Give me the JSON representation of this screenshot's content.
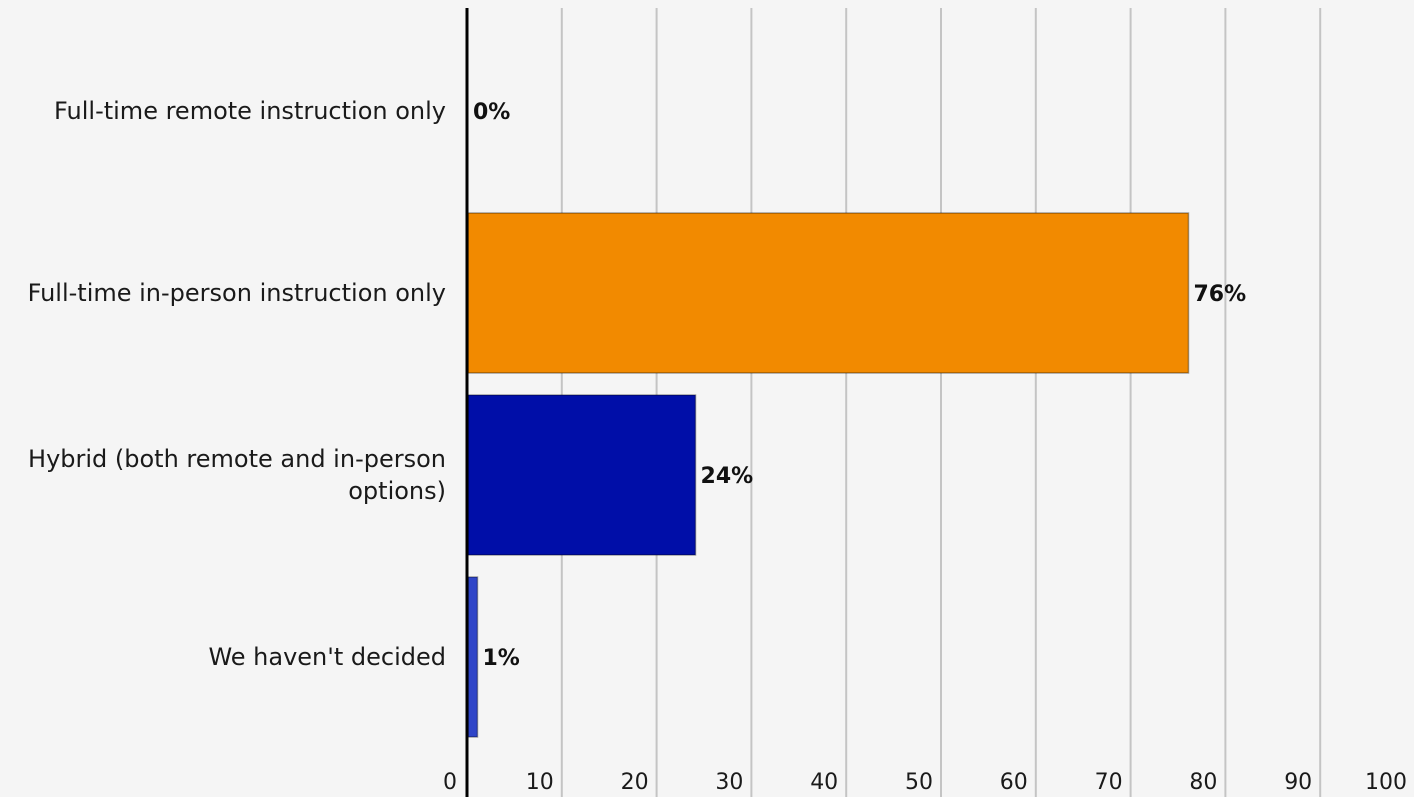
{
  "chart_data": {
    "type": "bar",
    "orientation": "horizontal",
    "categories": [
      "Full-time remote instruction only",
      "Full-time in-person instruction only",
      "Hybrid (both remote and in-person options)",
      "We haven't decided"
    ],
    "category_lines": [
      [
        "Full-time remote instruction only"
      ],
      [
        "Full-time in-person instruction only"
      ],
      [
        "Hybrid (both remote and in-person",
        "options)"
      ],
      [
        "We haven't decided"
      ]
    ],
    "values": [
      0,
      76,
      24,
      1
    ],
    "value_labels": [
      "0%",
      "76%",
      "24%",
      "1%"
    ],
    "bar_colors": [
      "#f28a00",
      "#f28a00",
      "#000ea8",
      "#2f45c8"
    ],
    "xlim": [
      0,
      100
    ],
    "xticks": [
      0,
      10,
      20,
      30,
      40,
      50,
      60,
      70,
      80,
      90,
      100
    ],
    "xtick_labels": [
      "0",
      "10",
      "20",
      "30",
      "40",
      "50",
      "60",
      "70",
      "80",
      "90",
      "100"
    ],
    "grid": "vertical",
    "legend": "none",
    "title": "",
    "xlabel": "",
    "ylabel": ""
  }
}
